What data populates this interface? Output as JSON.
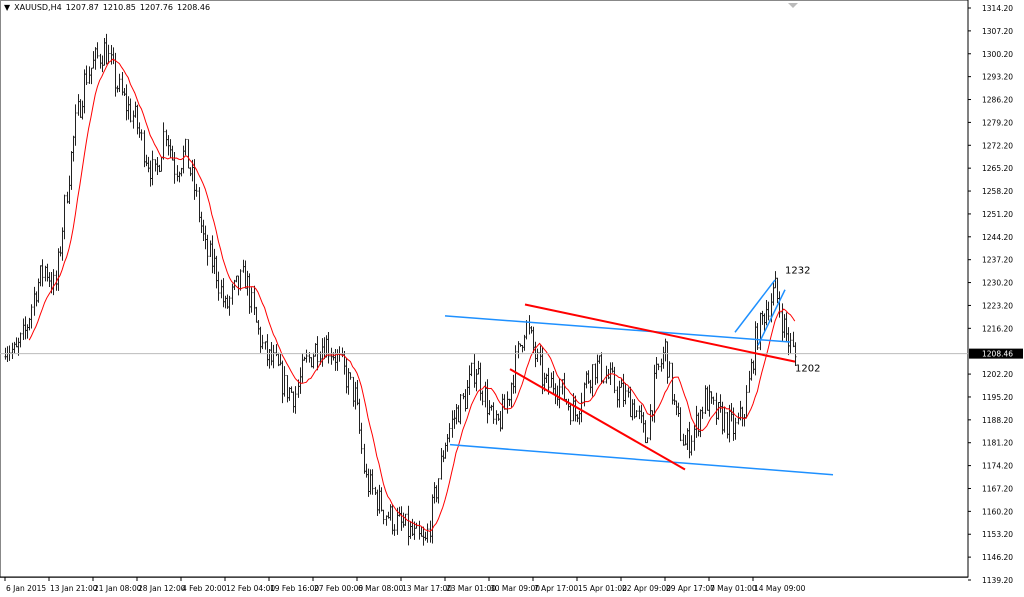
{
  "header": {
    "symbol": "XAUUSD,H4",
    "open": "1207.87",
    "high": "1210.85",
    "low": "1207.76",
    "close": "1208.46",
    "dropdown_icon": "triangle-down-icon"
  },
  "chart_data": {
    "type": "ohlc",
    "symbol": "XAUUSD",
    "timeframe": "H4",
    "ylim": [
      1139.2,
      1314.2
    ],
    "y_ticks": [
      "1314.20",
      "1307.20",
      "1300.20",
      "1293.20",
      "1286.20",
      "1279.20",
      "1272.20",
      "1265.20",
      "1258.20",
      "1251.20",
      "1244.20",
      "1237.20",
      "1230.20",
      "1223.20",
      "1216.20",
      "1202.20",
      "1195.20",
      "1188.20",
      "1181.20",
      "1174.20",
      "1167.20",
      "1160.20",
      "1153.20",
      "1146.20",
      "1139.20"
    ],
    "y_tick_values": [
      1314.2,
      1307.2,
      1300.2,
      1293.2,
      1286.2,
      1279.2,
      1272.2,
      1265.2,
      1258.2,
      1251.2,
      1244.2,
      1237.2,
      1230.2,
      1223.2,
      1216.2,
      1202.2,
      1195.2,
      1188.2,
      1181.2,
      1174.2,
      1167.2,
      1160.2,
      1153.2,
      1146.2,
      1139.2
    ],
    "x_ticks": [
      "6 Jan 2015",
      "13 Jan 21:00",
      "21 Jan 08:00",
      "28 Jan 12:00",
      "4 Feb 20:00",
      "12 Feb 04:00",
      "19 Feb 16:00",
      "27 Feb 00:00",
      "6 Mar 08:00",
      "13 Mar 17:00",
      "23 Mar 01:00",
      "30 Mar 09:00",
      "7 Apr 17:00",
      "15 Apr 01:00",
      "22 Apr 09:00",
      "29 Apr 17:00",
      "7 May 01:00",
      "14 May 09:00"
    ],
    "x_tick_positions": [
      0,
      4.4,
      8.8,
      13.2,
      17.6,
      22,
      26.4,
      30.8,
      35.2,
      39.6,
      44,
      48.4,
      52.8,
      57.2,
      61.6,
      66,
      70.4,
      74.8
    ],
    "approx_close_path": [
      1212,
      1208,
      1215,
      1228,
      1235,
      1228,
      1255,
      1278,
      1293,
      1298,
      1302,
      1292,
      1285,
      1280,
      1270,
      1262,
      1278,
      1265,
      1270,
      1258,
      1240,
      1235,
      1222,
      1228,
      1232,
      1218,
      1208,
      1205,
      1198,
      1196,
      1205,
      1210,
      1212,
      1208,
      1202,
      1195,
      1170,
      1165,
      1160,
      1157,
      1155,
      1152,
      1150,
      1165,
      1182,
      1190,
      1195,
      1205,
      1195,
      1185,
      1192,
      1205,
      1218,
      1208,
      1198,
      1200,
      1195,
      1190,
      1200,
      1205,
      1202,
      1198,
      1195,
      1192,
      1182,
      1200,
      1210,
      1190,
      1180,
      1186,
      1195,
      1190,
      1188,
      1185,
      1192,
      1212,
      1222,
      1228,
      1215,
      1207
    ],
    "current_price": "1208.46",
    "moving_average": {
      "color": "#ff0000"
    },
    "bar_color": "#000000",
    "trendlines": [
      {
        "color": "#1e90ff",
        "from": [
          44,
          1220.0
        ],
        "to": [
          78.5,
          1212.0
        ]
      },
      {
        "color": "#1e90ff",
        "from": [
          44.5,
          1180.6
        ],
        "to": [
          82.8,
          1171.4
        ]
      },
      {
        "color": "#ff0000",
        "from": [
          52,
          1223.5
        ],
        "to": [
          79,
          1206.0
        ]
      },
      {
        "color": "#ff0000",
        "from": [
          50.5,
          1203.7
        ],
        "to": [
          68,
          1173.0
        ]
      },
      {
        "color": "#1e90ff",
        "from": [
          73,
          1215.0
        ],
        "to": [
          77,
          1231.0
        ]
      },
      {
        "color": "#1e90ff",
        "from": [
          75.3,
          1211.0
        ],
        "to": [
          78,
          1228.0
        ]
      }
    ],
    "annotations": [
      {
        "text": "1232",
        "at": [
          78,
          1233
        ]
      },
      {
        "text": "1202",
        "at": [
          79,
          1203
        ]
      }
    ]
  }
}
